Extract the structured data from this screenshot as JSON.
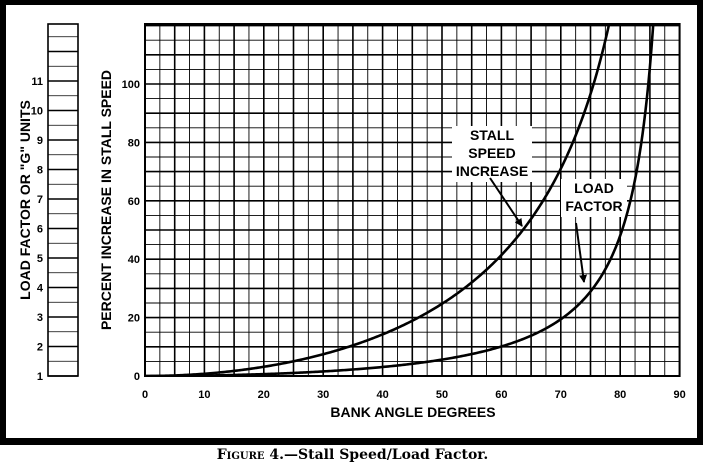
{
  "figure": {
    "caption_prefix": "Figure 4.",
    "caption_text": "—Stall Speed/Load Factor."
  },
  "chart_data": {
    "type": "line",
    "title": "Stall Speed/Load Factor",
    "xlabel": "BANK ANGLE DEGREES",
    "ylabel": "PERCENT INCREASE IN STALL SPEED",
    "y2label": "LOAD FACTOR OR \"G\" UNITS",
    "xlim": [
      0,
      90
    ],
    "ylim": [
      0,
      118
    ],
    "y2lim": [
      1,
      12
    ],
    "grid": true,
    "x_ticks": [
      0,
      10,
      20,
      30,
      40,
      50,
      60,
      70,
      80,
      90
    ],
    "y_ticks": [
      0,
      20,
      40,
      60,
      80,
      100
    ],
    "y2_ticks": [
      1,
      2,
      3,
      4,
      5,
      6,
      7,
      8,
      9,
      10,
      11
    ],
    "series": [
      {
        "name": "STALL SPEED INCREASE",
        "axis": "left",
        "x": [
          0,
          10,
          20,
          30,
          40,
          45,
          50,
          55,
          60,
          65,
          70,
          75,
          78
        ],
        "values": [
          0,
          0.8,
          3.2,
          7.5,
          14.3,
          18.9,
          24.7,
          32.0,
          41.4,
          53.8,
          71.0,
          96.6,
          119
        ]
      },
      {
        "name": "LOAD FACTOR",
        "axis": "right-scale (G units)",
        "x": [
          0,
          10,
          20,
          30,
          40,
          45,
          50,
          55,
          60,
          65,
          70,
          75,
          80,
          83,
          85,
          87
        ],
        "values": [
          1.0,
          1.015,
          1.064,
          1.155,
          1.305,
          1.414,
          1.556,
          1.743,
          2.0,
          2.366,
          2.924,
          3.864,
          5.759,
          8.2,
          11.47,
          19.1
        ]
      }
    ],
    "annotations": [
      {
        "text": [
          "STALL",
          "SPEED",
          "INCREASE"
        ],
        "points_to": "stall speed curve at ~64°"
      },
      {
        "text": [
          "LOAD",
          "FACTOR"
        ],
        "points_to": "load factor curve at ~74°"
      }
    ]
  }
}
